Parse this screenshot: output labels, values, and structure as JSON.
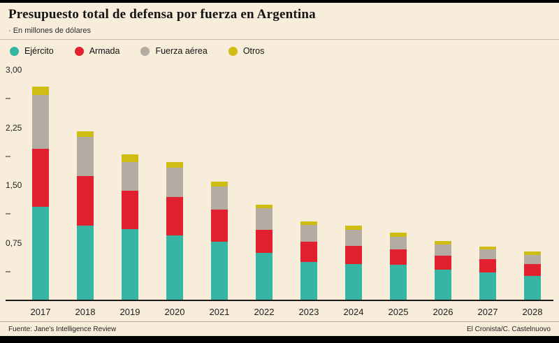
{
  "header": {
    "title": "Presupuesto total de defensa por fuerza en Argentina",
    "subtitle": "· En millones de dólares"
  },
  "legend": [
    {
      "label": "Ejército",
      "color": "#36b4a4"
    },
    {
      "label": "Armada",
      "color": "#e3202d"
    },
    {
      "label": "Fuerza aérea",
      "color": "#b3aca2"
    },
    {
      "label": "Otros",
      "color": "#d0bd13"
    }
  ],
  "chart_data": {
    "type": "bar",
    "stacked": true,
    "title": "Presupuesto total de defensa por fuerza en Argentina",
    "ylabel": "En millones de dólares",
    "xlabel": "",
    "ylim": [
      0,
      3.0
    ],
    "grid": false,
    "legend_position": "top",
    "categories": [
      "2017",
      "2018",
      "2019",
      "2020",
      "2021",
      "2022",
      "2023",
      "2024",
      "2025",
      "2026",
      "2027",
      "2028"
    ],
    "series": [
      {
        "name": "Ejército",
        "color": "#36b4a4",
        "values": [
          1.22,
          0.97,
          0.93,
          0.85,
          0.76,
          0.62,
          0.5,
          0.47,
          0.46,
          0.4,
          0.36,
          0.32
        ]
      },
      {
        "name": "Armada",
        "color": "#e3202d",
        "values": [
          0.75,
          0.65,
          0.5,
          0.5,
          0.42,
          0.3,
          0.26,
          0.24,
          0.2,
          0.18,
          0.18,
          0.15
        ]
      },
      {
        "name": "Fuerza aérea",
        "color": "#b3aca2",
        "values": [
          0.7,
          0.51,
          0.37,
          0.38,
          0.3,
          0.28,
          0.22,
          0.21,
          0.17,
          0.15,
          0.12,
          0.12
        ]
      },
      {
        "name": "Otros",
        "color": "#d0bd13",
        "values": [
          0.11,
          0.07,
          0.1,
          0.07,
          0.07,
          0.05,
          0.05,
          0.05,
          0.05,
          0.04,
          0.04,
          0.05
        ]
      }
    ],
    "yticks": [
      {
        "value": 3.0,
        "label": "3,00"
      },
      {
        "value": 2.25,
        "label": "2,25"
      },
      {
        "value": 1.5,
        "label": "1,50"
      },
      {
        "value": 0.75,
        "label": "0,75"
      }
    ],
    "minor_ticks": [
      2.625,
      1.875,
      1.125,
      0.375
    ]
  },
  "footer": {
    "source": "Fuente: Jane's Intelligence Review",
    "credit": "El Cronista/C. Castelnuovo"
  }
}
